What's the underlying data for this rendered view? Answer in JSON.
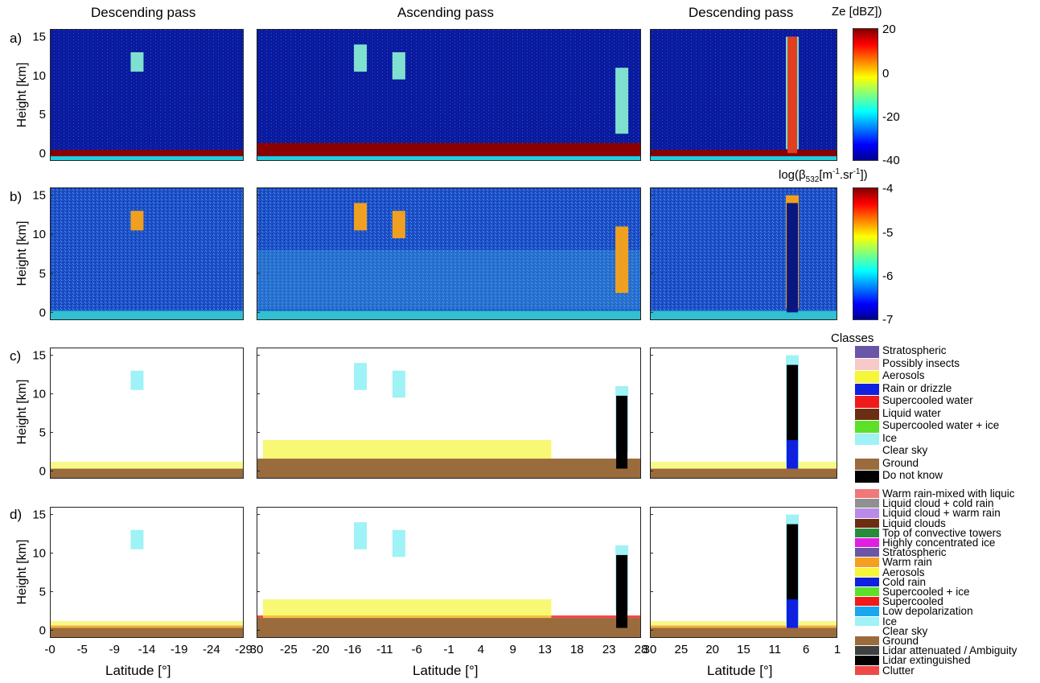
{
  "pass_titles": [
    "Descending pass",
    "Ascending pass",
    "Descending pass"
  ],
  "panel_letters": [
    "a)",
    "b)",
    "c)",
    "d)"
  ],
  "ylabel": "Height [km]",
  "xlabel": "Latitude [°]",
  "ytick_labels": [
    "15",
    "10",
    "5",
    "0"
  ],
  "xtick_labels": {
    "left": [
      "-0",
      "-5",
      "-9",
      "-14",
      "-19",
      "-24",
      "-29"
    ],
    "middle": [
      "30",
      "-25",
      "-20",
      "-16",
      "-11",
      "-6",
      "-1",
      "4",
      "9",
      "13",
      "18",
      "23",
      "28"
    ],
    "right": [
      "30",
      "25",
      "20",
      "15",
      "11",
      "6",
      "1"
    ]
  },
  "colors": {
    "radar_background": "#0a1a9c",
    "lidar_background": "#1e4fc8",
    "ground_brown": "#9a6b3c",
    "ground_red": "#8b0000"
  },
  "chart_data": [
    {
      "type": "heatmap",
      "panel": "a)",
      "quantity_label": "Ze [dBZ])",
      "colorbar": {
        "ticks": [
          "20",
          "0",
          "-20",
          "-40"
        ],
        "range": [
          -40,
          20
        ]
      },
      "ylim": [
        -1,
        16
      ],
      "yticks": [
        0,
        5,
        10,
        15
      ],
      "xlabel": "",
      "ylabel": "Height [km]"
    },
    {
      "type": "heatmap",
      "panel": "b)",
      "quantity_label": "log(β532[m-1.sr-1])",
      "quantity_parts": {
        "pre": "log(β",
        "sub": "532",
        "mid1": "[m",
        "sup1": "-1",
        "mid2": ".sr",
        "sup2": "-1",
        "post": "])"
      },
      "colorbar": {
        "ticks": [
          "-4",
          "-5",
          "-6",
          "-7"
        ],
        "range": [
          -7,
          -4
        ]
      },
      "ylim": [
        -1,
        16
      ],
      "yticks": [
        0,
        5,
        10,
        15
      ],
      "xlabel": "",
      "ylabel": "Height [km]"
    },
    {
      "type": "heatmap",
      "panel": "c)",
      "legend_title": "Classes",
      "legend": [
        {
          "label": "Stratospheric",
          "color": "#6a56a6"
        },
        {
          "label": "Possibly insects",
          "color": "#f7c9c9"
        },
        {
          "label": "Aerosols",
          "color": "#f5f53a"
        },
        {
          "label": "Rain or drizzle",
          "color": "#1020e0"
        },
        {
          "label": "Supercooled water",
          "color": "#ef1a1a"
        },
        {
          "label": "Liquid water",
          "color": "#6b2e12"
        },
        {
          "label": "Supercooled water + ice",
          "color": "#5ce02a"
        },
        {
          "label": "Ice",
          "color": "#9ff2f5"
        },
        {
          "label": "Clear sky",
          "color": "#ffffff"
        },
        {
          "label": "Ground",
          "color": "#9a6b3c"
        },
        {
          "label": "Do not know",
          "color": "#000000"
        }
      ],
      "ylim": [
        -1,
        16
      ],
      "yticks": [
        0,
        5,
        10,
        15
      ],
      "xlabel": "",
      "ylabel": "Height [km]"
    },
    {
      "type": "heatmap",
      "panel": "d)",
      "legend": [
        {
          "label": "Warm rain-mixed with liquic",
          "color": "#f07878"
        },
        {
          "label": "Liquid cloud + cold rain",
          "color": "#909090"
        },
        {
          "label": "Liquid cloud + warm rain",
          "color": "#b98ae8"
        },
        {
          "label": "Liquid clouds",
          "color": "#6b2e12"
        },
        {
          "label": "Top of convective towers",
          "color": "#2a8a3c"
        },
        {
          "label": "Highly concentrated ice",
          "color": "#e020e0"
        },
        {
          "label": "Stratospheric",
          "color": "#6a56a6"
        },
        {
          "label": "Warm rain",
          "color": "#f5a020"
        },
        {
          "label": "Aerosols",
          "color": "#f5f53a"
        },
        {
          "label": "Cold rain",
          "color": "#1020e0"
        },
        {
          "label": "Supercooled + ice",
          "color": "#5ce02a"
        },
        {
          "label": "Supercooled",
          "color": "#ef1a1a"
        },
        {
          "label": "Low depolarization",
          "color": "#19a7f0"
        },
        {
          "label": "Ice",
          "color": "#9ff2f5"
        },
        {
          "label": "Clear sky",
          "color": "#ffffff"
        },
        {
          "label": "Ground",
          "color": "#9a6b3c"
        },
        {
          "label": "Lidar attenuated / Ambiguity",
          "color": "#404040"
        },
        {
          "label": "Lidar extinguished",
          "color": "#000000"
        },
        {
          "label": "Clutter",
          "color": "#f04848"
        }
      ],
      "ylim": [
        -1,
        16
      ],
      "yticks": [
        0,
        5,
        10,
        15
      ],
      "xlabel": "Latitude [°]",
      "ylabel": "Height [km]"
    }
  ]
}
